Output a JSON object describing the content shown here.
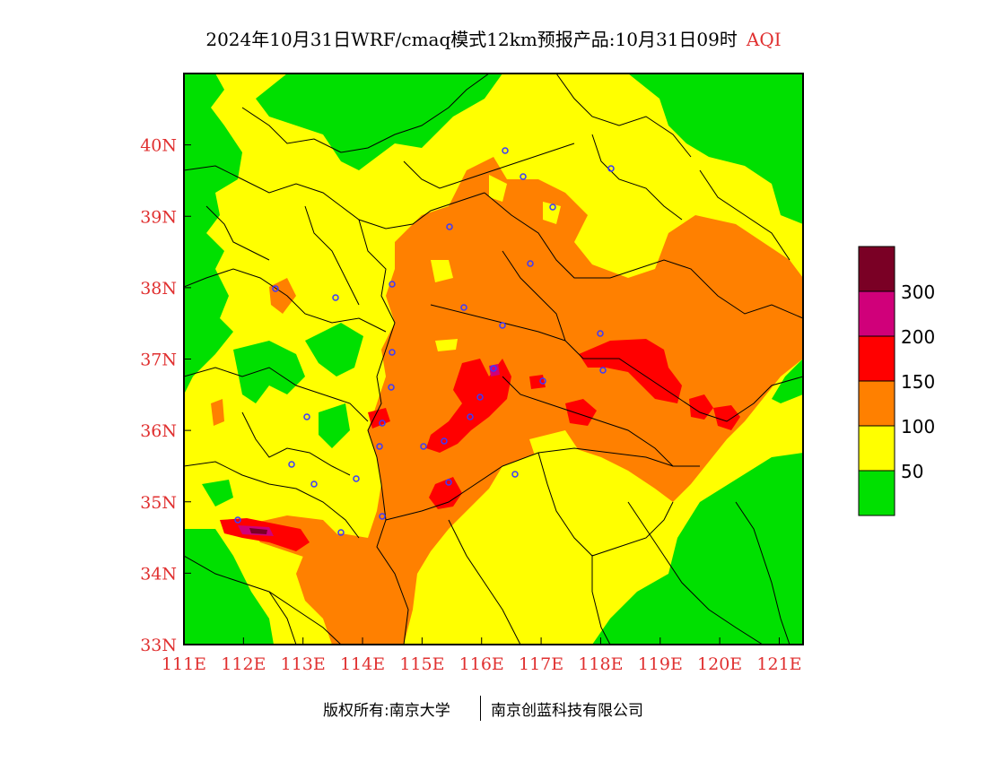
{
  "title": {
    "main": "2024年10月31日WRF/cmaq模式12km预报产品:10月31日09时",
    "variable": "AQI"
  },
  "map": {
    "lon_range": [
      111,
      121.4
    ],
    "lat_range": [
      33,
      41
    ],
    "x_ticks": [
      "111E",
      "112E",
      "113E",
      "114E",
      "115E",
      "116E",
      "117E",
      "118E",
      "119E",
      "120E",
      "121E"
    ],
    "y_ticks": [
      "33N",
      "34N",
      "35N",
      "36N",
      "37N",
      "38N",
      "39N",
      "40N"
    ],
    "colors": {
      "good": "#00e000",
      "moderate": "#ffff00",
      "usg": "#ff8000",
      "unhealthy": "#ff0000",
      "very_unhealthy": "#d0007a",
      "hazardous": "#7a0025",
      "axis_text": "#e03030",
      "city_marker": "#3a3aff"
    }
  },
  "legend": {
    "labels": [
      "300",
      "200",
      "150",
      "100",
      "50"
    ]
  },
  "footer": {
    "copyright": "版权所有:南京大学",
    "company": "南京创蓝科技有限公司"
  }
}
